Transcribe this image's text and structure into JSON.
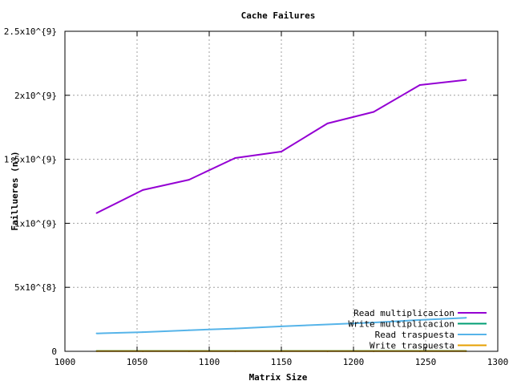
{
  "chart_data": {
    "type": "line",
    "title": "Cache Failures",
    "xlabel": "Matrix Size",
    "ylabel": "Faillueres (nº)",
    "xlim": [
      1000,
      1300
    ],
    "ylim": [
      0,
      2500000000
    ],
    "x_ticks": [
      {
        "value": 1000,
        "label": "1000"
      },
      {
        "value": 1050,
        "label": "1050"
      },
      {
        "value": 1100,
        "label": "1100"
      },
      {
        "value": 1150,
        "label": "1150"
      },
      {
        "value": 1200,
        "label": "1200"
      },
      {
        "value": 1250,
        "label": "1250"
      },
      {
        "value": 1300,
        "label": "1300"
      }
    ],
    "y_ticks": [
      {
        "value": 0,
        "label": "0"
      },
      {
        "value": 500000000,
        "label": "5x10^{8}"
      },
      {
        "value": 1000000000,
        "label": "1x10^{9}"
      },
      {
        "value": 1500000000,
        "label": "1.5x10^{9}"
      },
      {
        "value": 2000000000,
        "label": "2x10^{9}"
      },
      {
        "value": 2500000000,
        "label": "2.5x10^{9}"
      }
    ],
    "grid": true,
    "legend_position": "bottom-right",
    "x": [
      1022,
      1054,
      1086,
      1118,
      1150,
      1182,
      1214,
      1246,
      1278
    ],
    "series": [
      {
        "name": "Read multiplicacion",
        "color": "#9400d3",
        "values": [
          1080000000,
          1260000000,
          1340000000,
          1510000000,
          1560000000,
          1780000000,
          1870000000,
          2080000000,
          2120000000
        ]
      },
      {
        "name": "Write multiplicacion",
        "color": "#009e73",
        "values": [
          3000000,
          3000000,
          3000000,
          3000000,
          3000000,
          3000000,
          3000000,
          3000000,
          3000000
        ]
      },
      {
        "name": "Read traspuesta",
        "color": "#56b4e9",
        "values": [
          140000000,
          150000000,
          165000000,
          178000000,
          195000000,
          210000000,
          225000000,
          245000000,
          262000000
        ]
      },
      {
        "name": "Write traspuesta",
        "color": "#e69f00",
        "values": [
          1000000,
          1000000,
          1000000,
          1000000,
          1000000,
          1000000,
          1000000,
          1000000,
          1000000
        ]
      }
    ]
  }
}
